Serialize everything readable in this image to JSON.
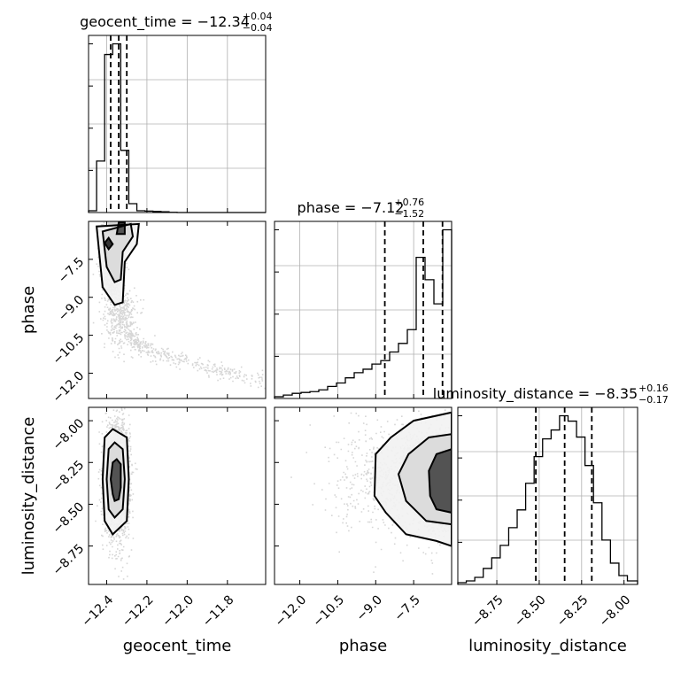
{
  "chart_data": {
    "type": "corner",
    "parameters": [
      {
        "name": "geocent_time",
        "axis_label": "geocent_time",
        "title": "geocent_time = ",
        "median": "−12.34",
        "plus": "+0.04",
        "minus": "−0.04",
        "range": [
          -12.49,
          -11.61
        ],
        "ticks": [
          -12.4,
          -12.2,
          -12.0,
          -11.8
        ],
        "tick_labels": [
          "−12.4",
          "−12.2",
          "−12.0",
          "−11.8"
        ],
        "quantiles": [
          -12.38,
          -12.34,
          -12.3
        ],
        "hist_edges": [
          -12.49,
          -12.45,
          -12.41,
          -12.37,
          -12.33,
          -12.29,
          -12.25,
          -12.21,
          -12.17,
          -12.13,
          -12.09,
          -12.05,
          -12.01,
          -11.97,
          -11.93,
          -11.89,
          -11.85,
          -11.81,
          -11.77,
          -11.73,
          -11.69,
          -11.65,
          -11.61
        ],
        "hist_counts": [
          0.01,
          0.29,
          0.89,
          0.95,
          0.35,
          0.05,
          0.01,
          0.008,
          0.006,
          0.004,
          0.001,
          0.0,
          0.0,
          0.0,
          0.0,
          0.0,
          0.0,
          0.0,
          0.0,
          0.0,
          0.0,
          0.0
        ]
      },
      {
        "name": "phase",
        "axis_label": "phase",
        "title": "phase = ",
        "median": "−7.12",
        "plus": "+0.76",
        "minus": "−1.52",
        "range": [
          -13.0,
          -6.0
        ],
        "ticks": [
          -12.0,
          -10.5,
          -9.0,
          -7.5
        ],
        "tick_labels": [
          "−12.0",
          "−10.5",
          "−9.0",
          "−7.5"
        ],
        "quantiles": [
          -8.64,
          -7.12,
          -6.36
        ],
        "hist_edges": [
          -13.0,
          -12.65,
          -12.3,
          -11.95,
          -11.6,
          -11.25,
          -10.9,
          -10.55,
          -10.2,
          -9.85,
          -9.5,
          -9.15,
          -8.8,
          -8.45,
          -8.1,
          -7.75,
          -7.4,
          -7.05,
          -6.7,
          -6.35,
          -6.0
        ],
        "hist_counts": [
          0.01,
          0.02,
          0.03,
          0.035,
          0.04,
          0.05,
          0.07,
          0.09,
          0.12,
          0.15,
          0.17,
          0.2,
          0.22,
          0.27,
          0.32,
          0.4,
          0.82,
          0.69,
          0.55,
          0.98
        ]
      },
      {
        "name": "luminosity_distance",
        "axis_label": "luminosity_distance",
        "title": "luminosity_distance = ",
        "median": "−8.35",
        "plus": "+0.16",
        "minus": "−0.17",
        "range": [
          -8.98,
          -7.92
        ],
        "ticks": [
          -8.75,
          -8.5,
          -8.25,
          -8.0
        ],
        "tick_labels": [
          "−8.75",
          "−8.50",
          "−8.25",
          "−8.00"
        ],
        "quantiles": [
          -8.52,
          -8.35,
          -8.19
        ],
        "hist_edges": [
          -8.98,
          -8.93,
          -8.88,
          -8.83,
          -8.78,
          -8.73,
          -8.68,
          -8.63,
          -8.58,
          -8.53,
          -8.48,
          -8.43,
          -8.38,
          -8.33,
          -8.28,
          -8.23,
          -8.18,
          -8.13,
          -8.08,
          -8.03,
          -7.98,
          -7.92
        ],
        "hist_counts": [
          0.01,
          0.02,
          0.04,
          0.09,
          0.15,
          0.22,
          0.32,
          0.42,
          0.57,
          0.72,
          0.82,
          0.87,
          0.95,
          0.92,
          0.83,
          0.67,
          0.46,
          0.25,
          0.12,
          0.05,
          0.02
        ]
      }
    ],
    "pairs": [
      {
        "x": "geocent_time",
        "y": "phase",
        "cores": [
          {
            "x": -12.35,
            "y": -6.5,
            "sx": 0.025,
            "sy": 0.55,
            "w": 0.6
          },
          {
            "x": -12.38,
            "y": -7.8,
            "sx": 0.03,
            "sy": 1.2,
            "w": 0.25
          },
          {
            "x": -12.32,
            "y": -9.8,
            "sx": 0.035,
            "sy": 0.6,
            "w": 0.15
          }
        ],
        "tail": [
          [
            -12.3,
            -10.4
          ],
          [
            -12.2,
            -11.1
          ],
          [
            -12.0,
            -11.6
          ],
          [
            -11.8,
            -12.0
          ],
          [
            -11.6,
            -12.3
          ]
        ],
        "contours": [
          [
            [
              -12.45,
              -6.2
            ],
            [
              -12.42,
              -8.6
            ],
            [
              -12.36,
              -9.3
            ],
            [
              -12.32,
              -9.2
            ],
            [
              -12.31,
              -7.6
            ],
            [
              -12.25,
              -6.9
            ],
            [
              -12.24,
              -6.1
            ]
          ],
          [
            [
              -12.42,
              -6.4
            ],
            [
              -12.4,
              -7.8
            ],
            [
              -12.36,
              -8.4
            ],
            [
              -12.33,
              -8.3
            ],
            [
              -12.32,
              -7.2
            ],
            [
              -12.27,
              -6.6
            ],
            [
              -12.28,
              -6.1
            ]
          ],
          [
            [
              -12.34,
              -6.05
            ],
            [
              -12.35,
              -6.5
            ],
            [
              -12.31,
              -6.5
            ],
            [
              -12.31,
              -6.05
            ]
          ],
          [
            [
              -12.41,
              -6.85
            ],
            [
              -12.39,
              -7.1
            ],
            [
              -12.37,
              -6.9
            ],
            [
              -12.39,
              -6.65
            ]
          ]
        ]
      },
      {
        "x": "geocent_time",
        "y": "luminosity_distance",
        "cores": [
          {
            "x": -12.35,
            "y": -8.35,
            "sx": 0.03,
            "sy": 0.17,
            "w": 1.0
          }
        ],
        "tail": [],
        "contours": [
          [
            [
              -12.42,
              -8.35
            ],
            [
              -12.41,
              -8.1
            ],
            [
              -12.37,
              -8.05
            ],
            [
              -12.3,
              -8.1
            ],
            [
              -12.29,
              -8.35
            ],
            [
              -12.3,
              -8.6
            ],
            [
              -12.37,
              -8.68
            ],
            [
              -12.41,
              -8.6
            ]
          ],
          [
            [
              -12.4,
              -8.35
            ],
            [
              -12.39,
              -8.17
            ],
            [
              -12.36,
              -8.13
            ],
            [
              -12.32,
              -8.17
            ],
            [
              -12.31,
              -8.35
            ],
            [
              -12.32,
              -8.53
            ],
            [
              -12.36,
              -8.58
            ],
            [
              -12.39,
              -8.53
            ]
          ],
          [
            [
              -12.38,
              -8.35
            ],
            [
              -12.37,
              -8.25
            ],
            [
              -12.35,
              -8.23
            ],
            [
              -12.33,
              -8.26
            ],
            [
              -12.33,
              -8.4
            ],
            [
              -12.34,
              -8.47
            ],
            [
              -12.36,
              -8.48
            ],
            [
              -12.37,
              -8.44
            ]
          ]
        ]
      },
      {
        "x": "phase",
        "y": "luminosity_distance",
        "cores": [
          {
            "x": -6.3,
            "y": -8.35,
            "sx": 0.7,
            "sy": 0.16,
            "w": 0.6
          },
          {
            "x": -7.8,
            "y": -8.35,
            "sx": 1.4,
            "sy": 0.17,
            "w": 0.4
          }
        ],
        "tail": [],
        "contours": [
          [
            [
              -6.0,
              -7.95
            ],
            [
              -7.5,
              -8.0
            ],
            [
              -8.4,
              -8.1
            ],
            [
              -9.0,
              -8.2
            ],
            [
              -9.05,
              -8.45
            ],
            [
              -8.6,
              -8.55
            ],
            [
              -7.8,
              -8.68
            ],
            [
              -6.6,
              -8.72
            ],
            [
              -6.0,
              -8.75
            ]
          ],
          [
            [
              -6.0,
              -8.08
            ],
            [
              -6.9,
              -8.1
            ],
            [
              -7.7,
              -8.2
            ],
            [
              -8.1,
              -8.32
            ],
            [
              -7.8,
              -8.48
            ],
            [
              -7.0,
              -8.6
            ],
            [
              -6.0,
              -8.62
            ]
          ],
          [
            [
              -6.0,
              -8.17
            ],
            [
              -6.6,
              -8.2
            ],
            [
              -6.9,
              -8.3
            ],
            [
              -6.85,
              -8.45
            ],
            [
              -6.6,
              -8.53
            ],
            [
              -6.0,
              -8.55
            ]
          ]
        ]
      }
    ]
  }
}
